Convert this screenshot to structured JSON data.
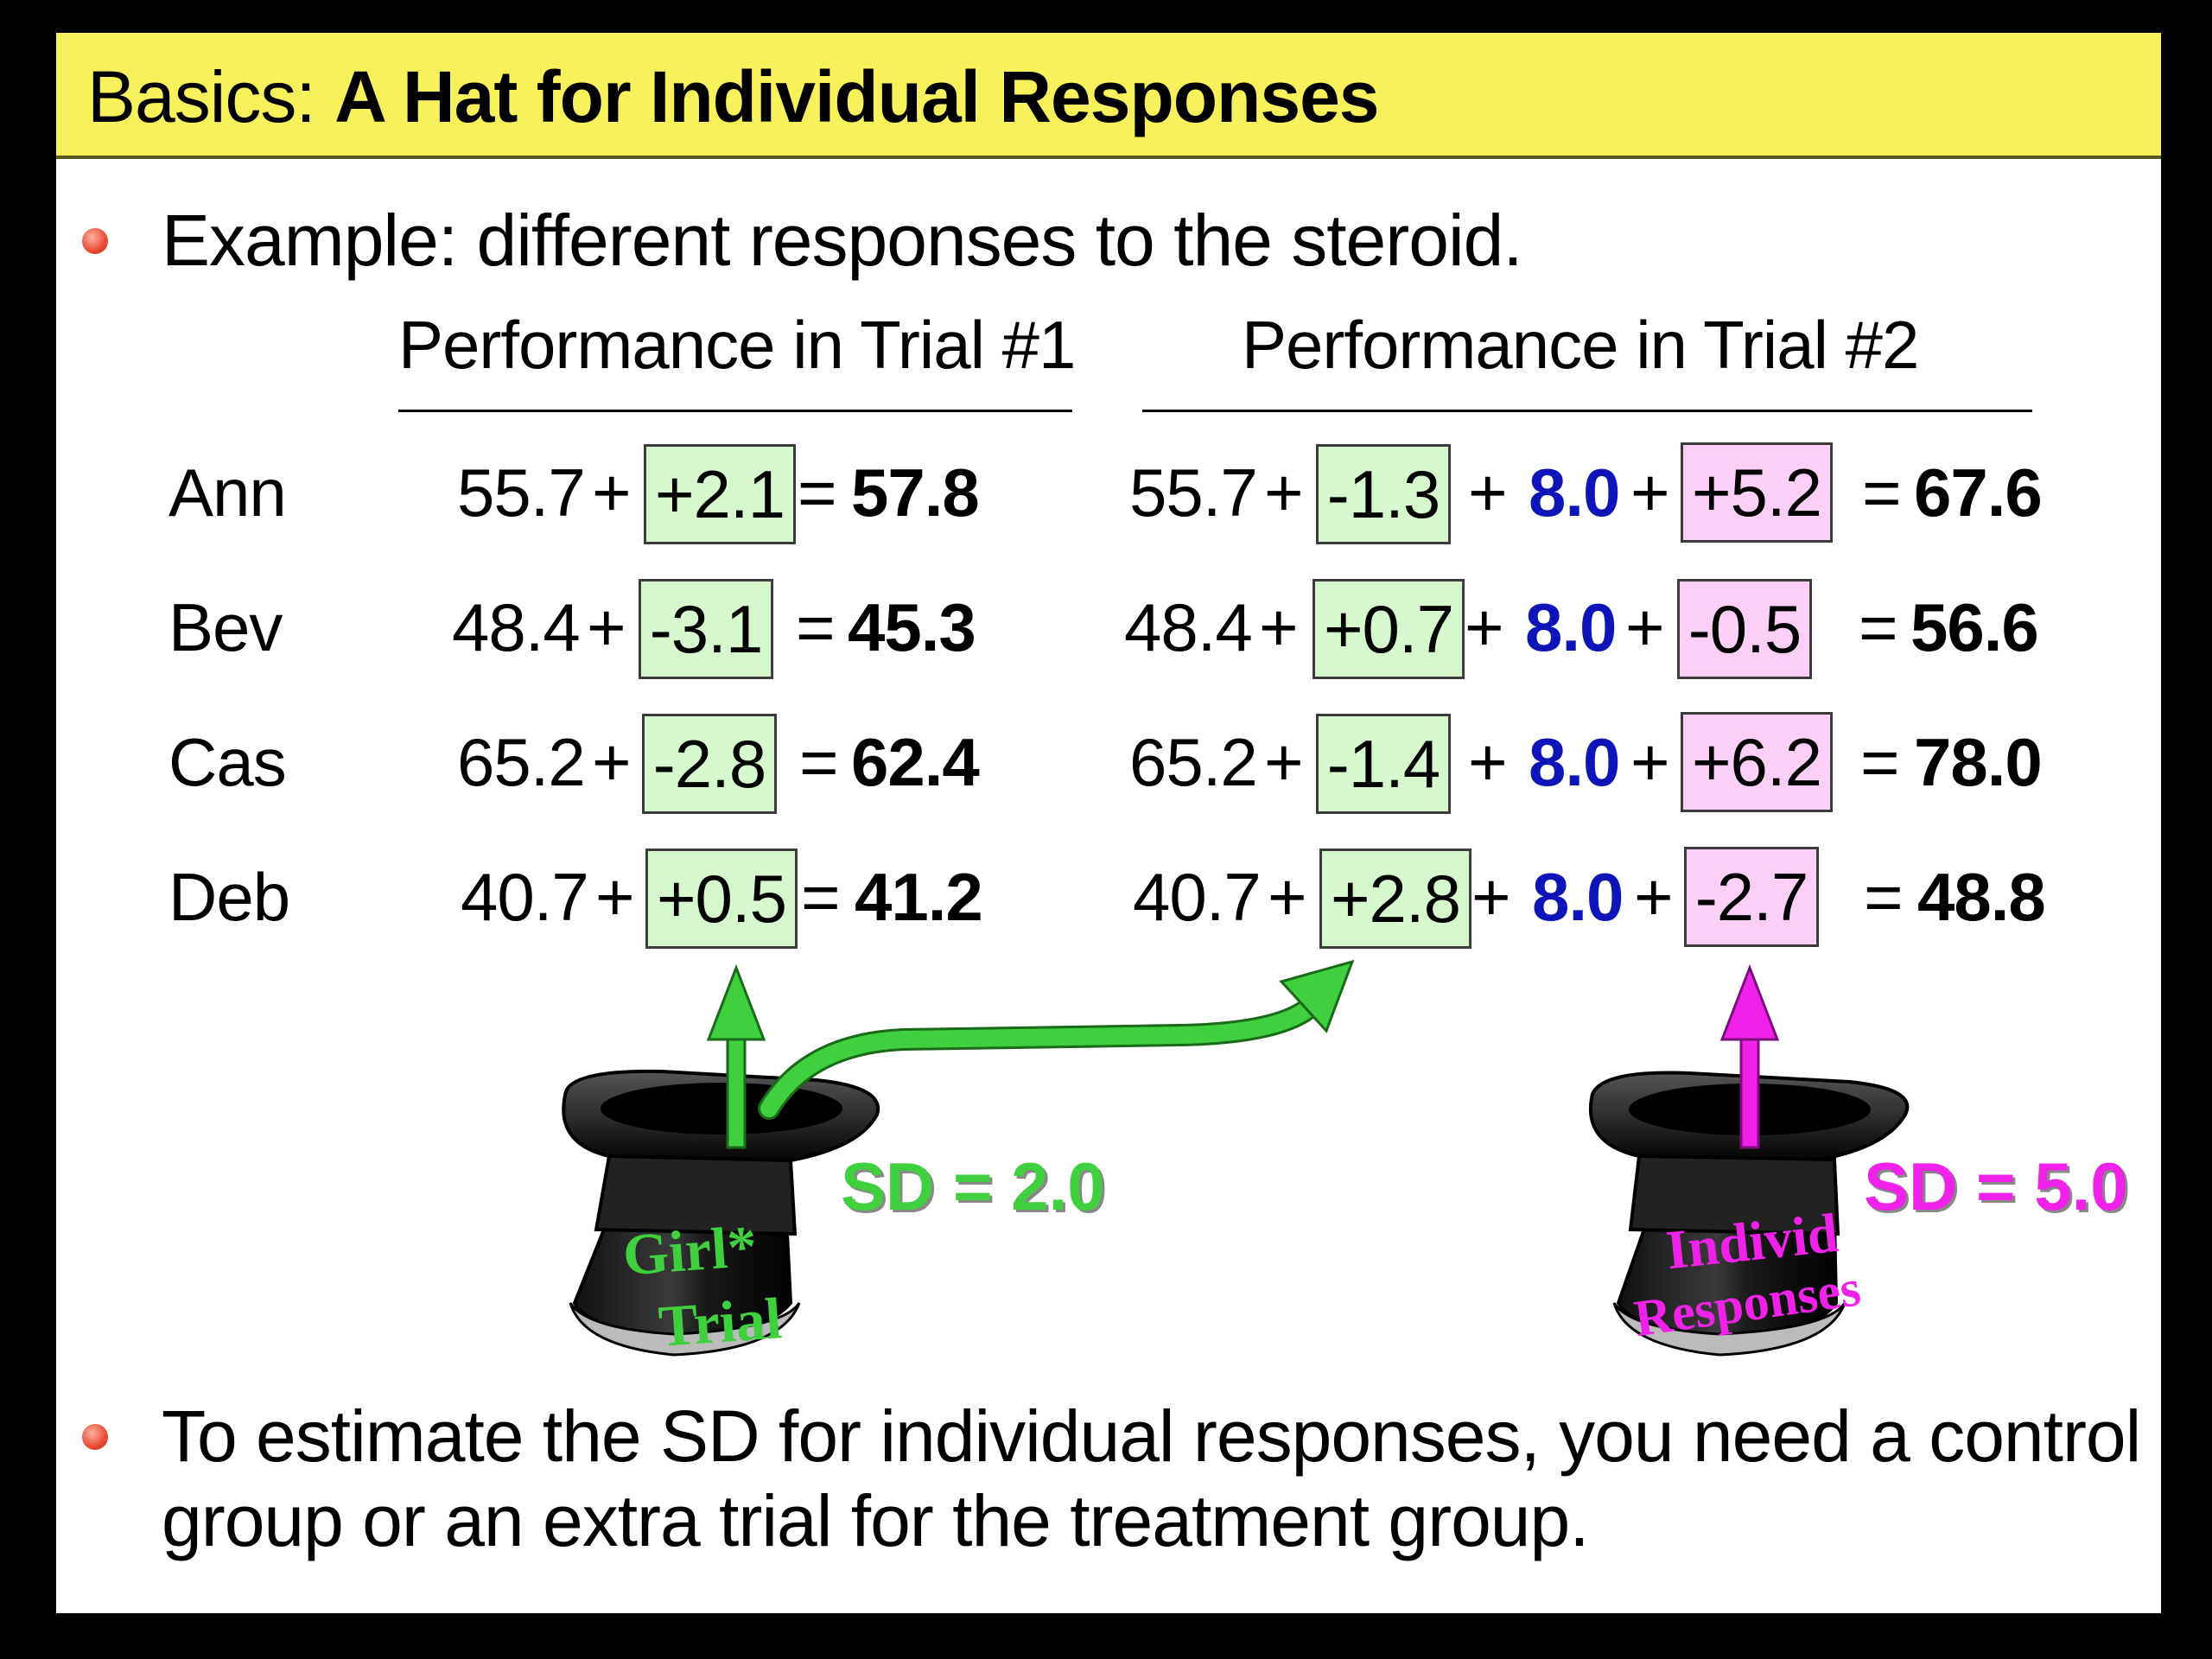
{
  "title": {
    "prefix": "Basics: ",
    "emphasis": "A Hat for Individual Responses"
  },
  "bullets": [
    "Example: different responses to the steroid.",
    "To estimate the SD for individual responses, you need a control",
    "group or an extra trial for the treatment group."
  ],
  "headers": {
    "trial1": "Performance in Trial #1",
    "trial2": "Performance in Trial #2"
  },
  "rows": [
    {
      "name": "Ann",
      "t1_base": "55.7",
      "t1_err": "+2.1",
      "t1_total": "57.8",
      "t2_base": "55.7",
      "t2_err": "-1.3",
      "t2_effect": "8.0",
      "t2_indiv": "+5.2",
      "t2_total": "67.6"
    },
    {
      "name": "Bev",
      "t1_base": "48.4",
      "t1_err": "-3.1",
      "t1_total": "45.3",
      "t2_base": "48.4",
      "t2_err": "+0.7",
      "t2_effect": "8.0",
      "t2_indiv": "-0.5",
      "t2_total": "56.6"
    },
    {
      "name": "Cas",
      "t1_base": "65.2",
      "t1_err": "-2.8",
      "t1_total": "62.4",
      "t2_base": "65.2",
      "t2_err": "-1.4",
      "t2_effect": "8.0",
      "t2_indiv": "+6.2",
      "t2_total": "78.0"
    },
    {
      "name": "Deb",
      "t1_base": "40.7",
      "t1_err": "+0.5",
      "t1_total": "41.2",
      "t2_base": "40.7",
      "t2_err": "+2.8",
      "t2_effect": "8.0",
      "t2_indiv": "-2.7",
      "t2_total": "48.8"
    }
  ],
  "operators": {
    "plus": "+",
    "equals": "="
  },
  "hats": {
    "girl_trial": {
      "line1": "Girl*",
      "line2": "Trial",
      "sd_label": "SD = 2.0",
      "color": "#3fcf3f"
    },
    "individual": {
      "line1": "Individ",
      "line2": "Responses",
      "sd_label": "SD = 5.0",
      "color": "#f022ea"
    }
  },
  "colors": {
    "title_bar": "#f7f15b",
    "effect_blue": "#0e14b8",
    "green_box": "#d7f7cf",
    "pink_box": "#fbcff6"
  }
}
